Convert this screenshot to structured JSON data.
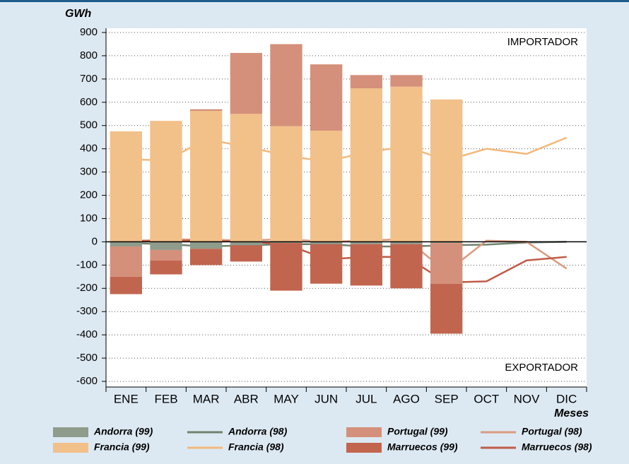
{
  "chart_data": {
    "type": "bar",
    "y_label": "GWh",
    "x_label": "Meses",
    "annotations": [
      "IMPORTADOR",
      "EXPORTADOR"
    ],
    "categories": [
      "ENE",
      "FEB",
      "MAR",
      "ABR",
      "MAY",
      "JUN",
      "JUL",
      "AGO",
      "SEP",
      "OCT",
      "NOV",
      "DIC"
    ],
    "series": [
      {
        "name": "Andorra (99)",
        "type": "bar",
        "color": "#8f9c8c",
        "values": [
          -20,
          -35,
          -30,
          -15,
          -5,
          -10,
          -10,
          -10,
          -5,
          null,
          null,
          null
        ]
      },
      {
        "name": "Francia (99)",
        "type": "bar",
        "color": "#f2c089",
        "values": [
          475,
          520,
          563,
          550,
          497,
          478,
          660,
          667,
          612,
          null,
          null,
          null
        ]
      },
      {
        "name": "Portugal (99)",
        "type": "bar",
        "color": "#d4907a",
        "values": [
          -130,
          -45,
          7,
          262,
          353,
          285,
          57,
          50,
          -175,
          null,
          null,
          null
        ]
      },
      {
        "name": "Marruecos (99)",
        "type": "bar",
        "color": "#c2654f",
        "values": [
          -75,
          -60,
          -70,
          -70,
          -205,
          -170,
          -178,
          -190,
          -215,
          null,
          null,
          null
        ]
      },
      {
        "name": "Andorra (98)",
        "type": "line",
        "color": "#6f836f",
        "values": [
          -5,
          -10,
          -20,
          -15,
          -10,
          -10,
          -20,
          -20,
          -15,
          -12,
          -3,
          0
        ]
      },
      {
        "name": "Francia (98)",
        "type": "line",
        "color": "#f2b97c",
        "values": [
          355,
          350,
          440,
          410,
          370,
          345,
          385,
          410,
          350,
          400,
          378,
          448
        ]
      },
      {
        "name": "Portugal (98)",
        "type": "line",
        "color": "#dc9a80",
        "values": [
          0,
          10,
          10,
          5,
          12,
          0,
          5,
          12,
          -130,
          5,
          0,
          -115
        ]
      },
      {
        "name": "Marruecos (98)",
        "type": "line",
        "color": "#c05b47",
        "values": [
          5,
          5,
          5,
          0,
          -10,
          -75,
          -65,
          -65,
          -175,
          -170,
          -80,
          -65
        ]
      }
    ],
    "ylim": [
      -600,
      900
    ],
    "yticks": [
      -600,
      -500,
      -400,
      -300,
      -200,
      -100,
      0,
      100,
      200,
      300,
      400,
      500,
      600,
      700,
      800,
      900
    ],
    "grid": true
  }
}
